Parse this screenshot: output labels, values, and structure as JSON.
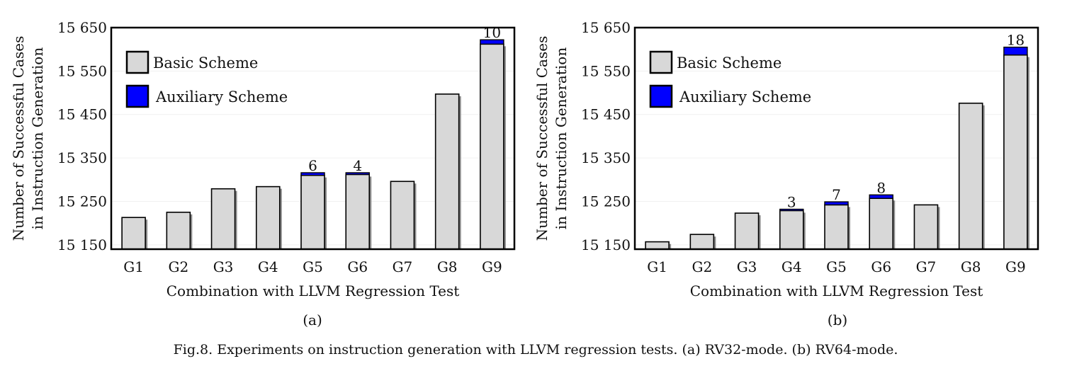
{
  "chart_data": [
    {
      "type": "bar",
      "panel": "(a)",
      "categories": [
        "G1",
        "G2",
        "G3",
        "G4",
        "G5",
        "G6",
        "G7",
        "G8",
        "G9"
      ],
      "series": [
        {
          "name": "Basic Scheme",
          "color": "#d8d8d8",
          "values": [
            15213,
            15225,
            15279,
            15284,
            15310,
            15312,
            15296,
            15497,
            15612
          ]
        },
        {
          "name": "Auxiliary Scheme",
          "color": "#0000ff",
          "values": [
            0,
            0,
            0,
            0,
            6,
            4,
            0,
            0,
            10
          ]
        }
      ],
      "annotations": [
        {
          "category": "G5",
          "text": "6"
        },
        {
          "category": "G6",
          "text": "4"
        },
        {
          "category": "G9",
          "text": "10"
        }
      ],
      "yticks": [
        15150,
        15250,
        15350,
        15450,
        15550,
        15650
      ],
      "ytick_labels": [
        "15 150",
        "15 250",
        "15 350",
        "15 450",
        "15 550",
        "15 650"
      ],
      "ylim": [
        15140,
        15650
      ],
      "xlabel": "Combination with LLVM Regression Test",
      "ylabel_lines": [
        "Number of Successful Cases",
        "in Instruction Generation"
      ],
      "legend": [
        "Basic Scheme",
        "Auxiliary Scheme"
      ],
      "legend_position": "top-left"
    },
    {
      "type": "bar",
      "panel": "(b)",
      "categories": [
        "G1",
        "G2",
        "G3",
        "G4",
        "G5",
        "G6",
        "G7",
        "G8",
        "G9"
      ],
      "series": [
        {
          "name": "Basic Scheme",
          "color": "#d8d8d8",
          "values": [
            15157,
            15174,
            15223,
            15229,
            15242,
            15257,
            15242,
            15476,
            15587
          ]
        },
        {
          "name": "Auxiliary Scheme",
          "color": "#0000ff",
          "values": [
            0,
            0,
            0,
            3,
            7,
            8,
            0,
            0,
            18
          ]
        }
      ],
      "annotations": [
        {
          "category": "G4",
          "text": "3"
        },
        {
          "category": "G5",
          "text": "7"
        },
        {
          "category": "G6",
          "text": "8"
        },
        {
          "category": "G9",
          "text": "18"
        }
      ],
      "yticks": [
        15150,
        15250,
        15350,
        15450,
        15550,
        15650
      ],
      "ytick_labels": [
        "15 150",
        "15 250",
        "15 350",
        "15 450",
        "15 550",
        "15 650"
      ],
      "ylim": [
        15140,
        15650
      ],
      "xlabel": "Combination with LLVM Regression Test",
      "ylabel_lines": [
        "Number of Successful Cases",
        "in Instruction Generation"
      ],
      "legend": [
        "Basic Scheme",
        "Auxiliary Scheme"
      ],
      "legend_position": "top-left"
    }
  ],
  "caption": "Fig.8.  Experiments on instruction generation with LLVM regression tests. (a) RV32-mode. (b) RV64-mode."
}
